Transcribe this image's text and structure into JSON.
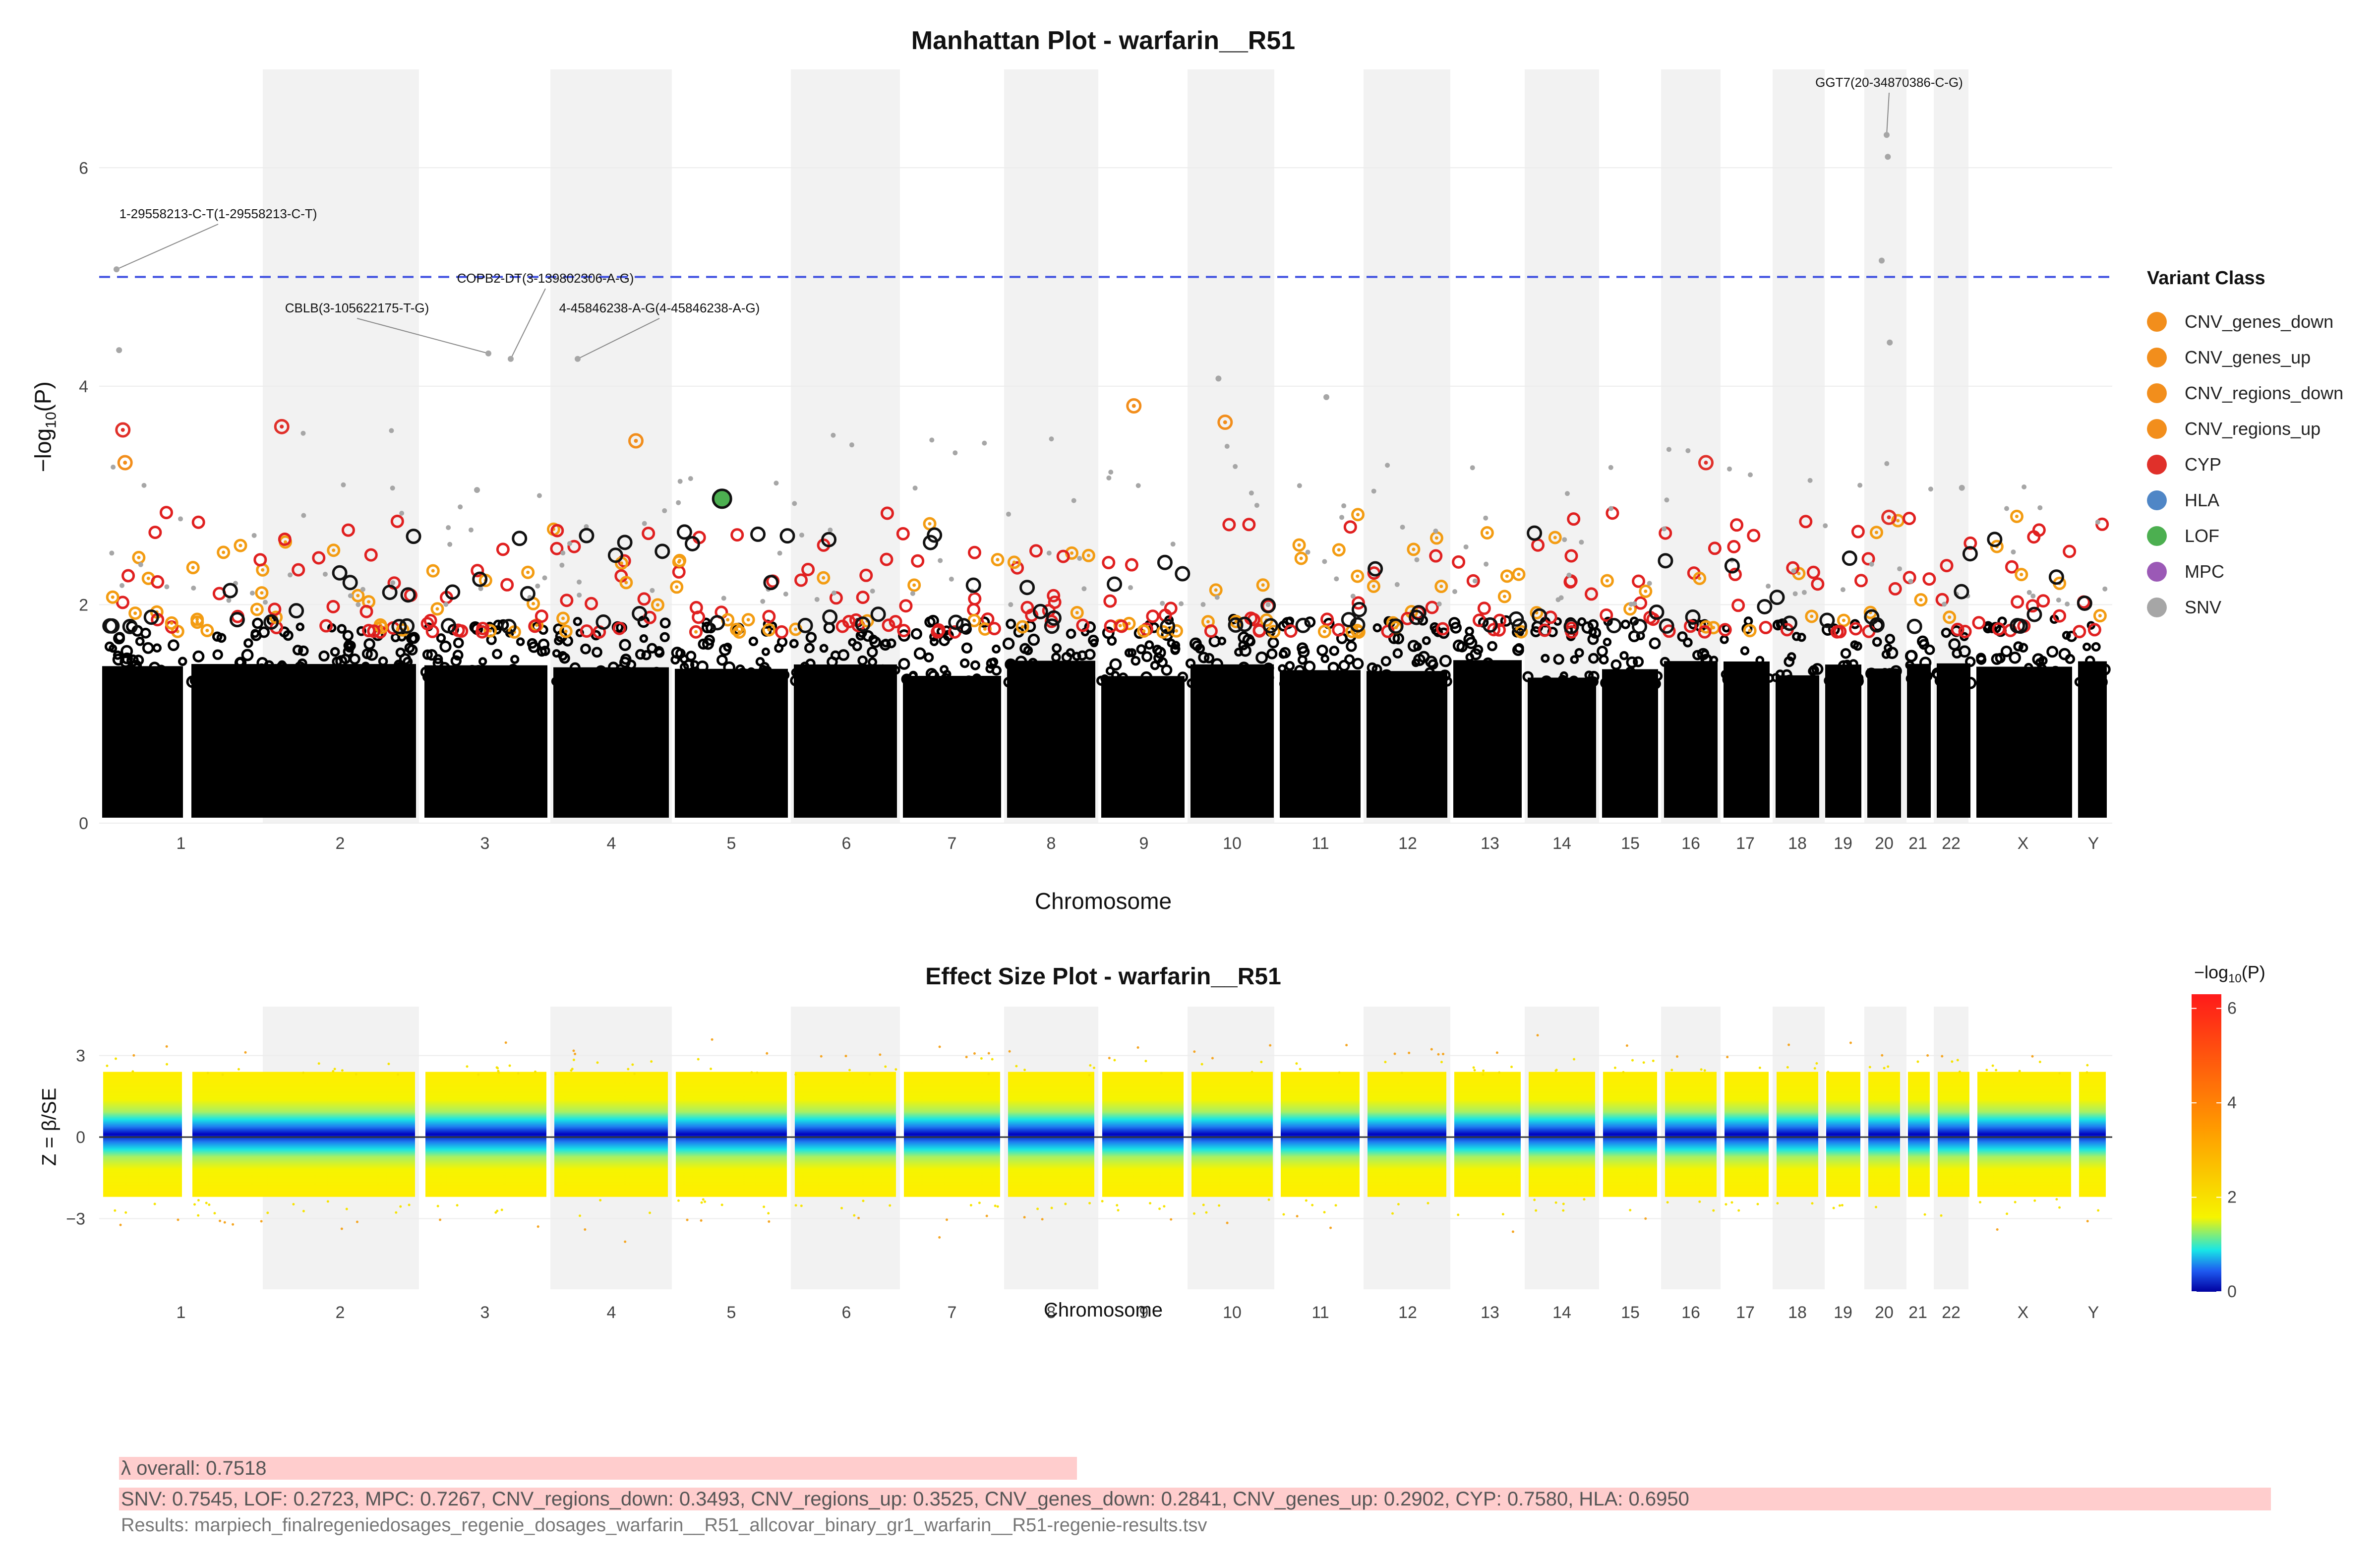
{
  "manhattan": {
    "title": "Manhattan Plot - warfarin__R51",
    "xlabel": "Chromosome",
    "ylabel_base": "−log",
    "ylabel_sub": "10",
    "ylabel_arg": "(P)"
  },
  "effect": {
    "title": "Effect Size Plot - warfarin__R51",
    "xlabel": "Chromosome",
    "ylabel": "Z = β/SE"
  },
  "legend": {
    "title": "Variant Class",
    "items": [
      {
        "label": "CNV_genes_down",
        "color": "#f28e1c"
      },
      {
        "label": "CNV_genes_up",
        "color": "#f28e1c"
      },
      {
        "label": "CNV_regions_down",
        "color": "#f28e1c"
      },
      {
        "label": "CNV_regions_up",
        "color": "#f28e1c"
      },
      {
        "label": "CYP",
        "color": "#e0302a"
      },
      {
        "label": "HLA",
        "color": "#4f86c6"
      },
      {
        "label": "LOF",
        "color": "#4caf50"
      },
      {
        "label": "MPC",
        "color": "#9b59b6"
      },
      {
        "label": "SNV",
        "color": "#a6a6a6"
      }
    ]
  },
  "colorbar": {
    "title_base": "−log",
    "title_sub": "10",
    "title_arg": "(P)",
    "ticks": [
      "0",
      "2",
      "4",
      "6"
    ],
    "range": [
      0,
      6.3
    ]
  },
  "stats": {
    "lambda_overall": "λ overall: 0.7518",
    "lambda_by_class": "SNV: 0.7545, LOF: 0.2723, MPC: 0.7267, CNV_regions_down: 0.3493, CNV_regions_up: 0.3525, CNV_genes_down: 0.2841, CNV_genes_up: 0.2902, CYP: 0.7580, HLA: 0.6950",
    "results_file": "Results: marpiech_finalregeniedosages_regenie_dosages_warfarin__R51_allcovar_binary_gr1_warfarin__R51-regenie-results.tsv"
  },
  "chart_data": [
    {
      "type": "scatter",
      "title": "Manhattan Plot - warfarin__R51",
      "xlabel": "Chromosome",
      "ylabel": "−log10(P)",
      "categories": [
        "1",
        "2",
        "3",
        "4",
        "5",
        "6",
        "7",
        "8",
        "9",
        "10",
        "11",
        "12",
        "13",
        "14",
        "15",
        "16",
        "17",
        "18",
        "19",
        "20",
        "21",
        "22",
        "X",
        "Y"
      ],
      "y_ticks": [
        "0",
        "2",
        "4",
        "6"
      ],
      "ylim": [
        0,
        6.9
      ],
      "significance_line": 5.0,
      "shaded_chromosomes": [
        "2",
        "4",
        "6",
        "8",
        "10",
        "12",
        "14",
        "16",
        "18",
        "20",
        "22"
      ],
      "annotations": [
        {
          "label": "1-29558213-C-T(1-29558213-C-T)",
          "chromosome": "1",
          "y": 5.07
        },
        {
          "label": "CBLB(3-105622175-T-G)",
          "chromosome": "3",
          "y": 4.3
        },
        {
          "label": "COPB2-DT(3-139802306-A-G)",
          "chromosome": "3",
          "y": 4.25
        },
        {
          "label": "4-45846238-A-G(4-45846238-A-G)",
          "chromosome": "4",
          "y": 4.25
        },
        {
          "label": "GGT7(20-34870386-C-G)",
          "chromosome": "20",
          "y": 6.3
        }
      ],
      "notable_points": [
        {
          "chromosome": "1",
          "y": 4.33,
          "class": "SNV"
        },
        {
          "chromosome": "1",
          "y": 3.6,
          "class": "CYP"
        },
        {
          "chromosome": "1",
          "y": 3.3,
          "class": "CNV_genes_down"
        },
        {
          "chromosome": "2",
          "y": 3.63,
          "class": "CYP"
        },
        {
          "chromosome": "3",
          "y": 3.05,
          "class": "SNV"
        },
        {
          "chromosome": "4",
          "y": 3.5,
          "class": "CNV_genes_up"
        },
        {
          "chromosome": "5",
          "y": 2.97,
          "class": "LOF"
        },
        {
          "chromosome": "9",
          "y": 3.82,
          "class": "CNV_genes_down"
        },
        {
          "chromosome": "10",
          "y": 4.07,
          "class": "SNV"
        },
        {
          "chromosome": "10",
          "y": 3.67,
          "class": "CNV_genes_down"
        },
        {
          "chromosome": "11",
          "y": 3.9,
          "class": "SNV"
        },
        {
          "chromosome": "16",
          "y": 3.3,
          "class": "CYP"
        },
        {
          "chromosome": "20",
          "y": 6.1,
          "class": "SNV"
        },
        {
          "chromosome": "20",
          "y": 5.15,
          "class": "SNV"
        },
        {
          "chromosome": "20",
          "y": 4.4,
          "class": "SNV"
        },
        {
          "chromosome": "20",
          "y": 2.8,
          "class": "CYP"
        },
        {
          "chromosome": "22",
          "y": 3.07,
          "class": "SNV"
        }
      ],
      "bulk_upper_y": 1.7,
      "legend_position": "right"
    },
    {
      "type": "scatter",
      "title": "Effect Size Plot - warfarin__R51",
      "xlabel": "Chromosome",
      "ylabel": "Z = β/SE",
      "categories": [
        "1",
        "2",
        "3",
        "4",
        "5",
        "6",
        "7",
        "8",
        "9",
        "10",
        "11",
        "12",
        "13",
        "14",
        "15",
        "16",
        "17",
        "18",
        "19",
        "20",
        "21",
        "22",
        "X",
        "Y"
      ],
      "y_ticks": [
        "-3",
        "0",
        "3"
      ],
      "ylim": [
        -5.6,
        4.8
      ],
      "bulk_z_range": [
        -2.2,
        2.4
      ],
      "color_scale": "−log10(P)",
      "color_range": [
        0,
        6.3
      ],
      "legend_position": "right"
    }
  ]
}
